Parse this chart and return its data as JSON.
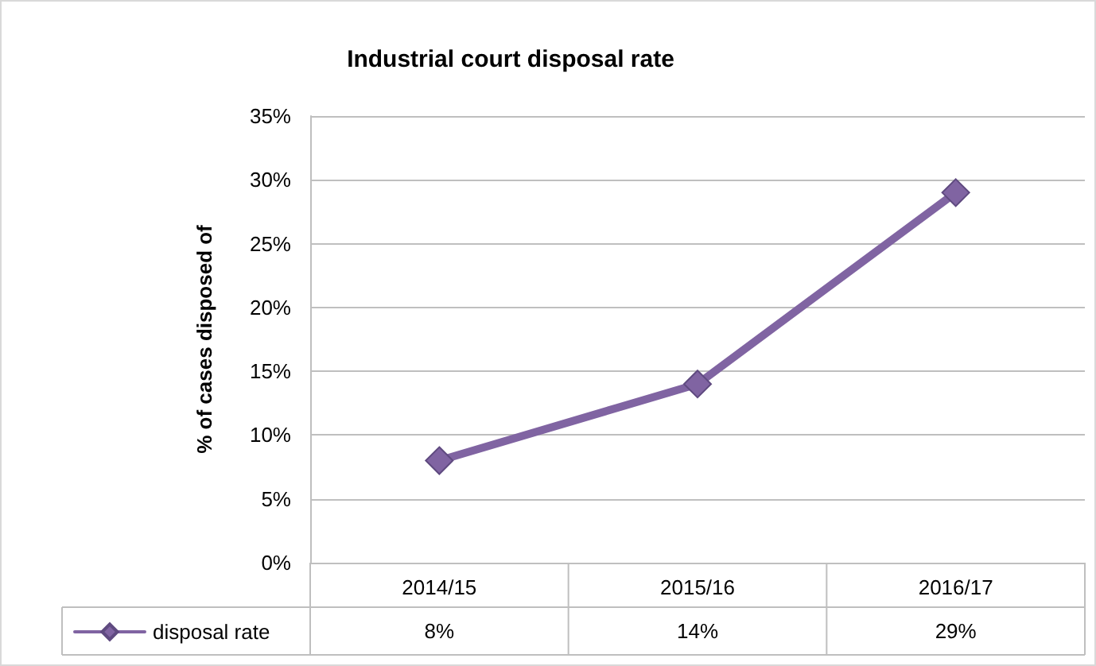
{
  "chart_data": {
    "type": "line",
    "title": "Industrial court disposal rate",
    "ylabel": "% of cases disposed of",
    "categories": [
      "2014/15",
      "2015/16",
      "2016/17"
    ],
    "series": [
      {
        "name": "disposal rate",
        "color": "#8064a2",
        "values": [
          8,
          14,
          29
        ],
        "value_labels": [
          "8%",
          "14%",
          "29%"
        ]
      }
    ],
    "ylim": [
      0,
      35
    ],
    "yticks": [
      {
        "value": 0,
        "label": "0%"
      },
      {
        "value": 5,
        "label": "5%"
      },
      {
        "value": 10,
        "label": "10%"
      },
      {
        "value": 15,
        "label": "15%"
      },
      {
        "value": 20,
        "label": "20%"
      },
      {
        "value": 25,
        "label": "25%"
      },
      {
        "value": 30,
        "label": "30%"
      },
      {
        "value": 35,
        "label": "35%"
      }
    ],
    "grid": "y",
    "legend": "bottom left",
    "marker": "diamond",
    "line_style": "solid"
  }
}
